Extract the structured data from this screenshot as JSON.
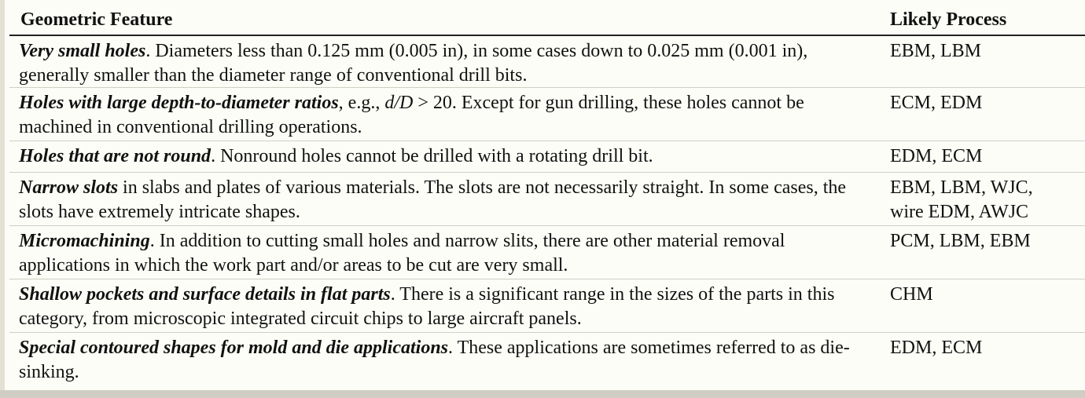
{
  "table": {
    "col_feature": "Geometric Feature",
    "col_process": "Likely Process",
    "rows": [
      {
        "term": "Very small holes",
        "text_a": ". Diameters less than 0.125 mm (0.005 in), in some cases down to 0.025 mm (0.001 in), generally smaller than the diameter range of conventional drill bits.",
        "process": "EBM, LBM"
      },
      {
        "term": "Holes with large depth-to-diameter ratios",
        "text_a": ", e.g., ",
        "ratio": "d/D",
        "text_b": " > 20. Except for gun drilling, these holes cannot be machined in conventional drilling operations.",
        "process": "ECM, EDM"
      },
      {
        "term": "Holes that are not round",
        "text_a": ". Nonround holes cannot be drilled with a rotating drill bit.",
        "process": "EDM, ECM"
      },
      {
        "term": "Narrow slots",
        "text_a": " in slabs and plates of various materials. The slots are not necessarily straight. In some cases, the slots have extremely intricate shapes.",
        "process_line1": "EBM, LBM, WJC,",
        "process_line2": "wire EDM, AWJC"
      },
      {
        "term": "Micromachining",
        "text_a": ". In addition to cutting small holes and narrow slits, there are other material removal applications in which the work part and/or areas to be cut are very small.",
        "process": "PCM, LBM, EBM"
      },
      {
        "term": "Shallow pockets and surface details in flat parts",
        "text_a": ". There is a significant range in the sizes of the parts in this category, from microscopic integrated circuit chips to large aircraft panels.",
        "process": "CHM"
      },
      {
        "term": "Special contoured shapes for mold and die applications",
        "text_a": ". These applications are sometimes referred to as die-sinking.",
        "process": "EDM, ECM"
      }
    ]
  }
}
